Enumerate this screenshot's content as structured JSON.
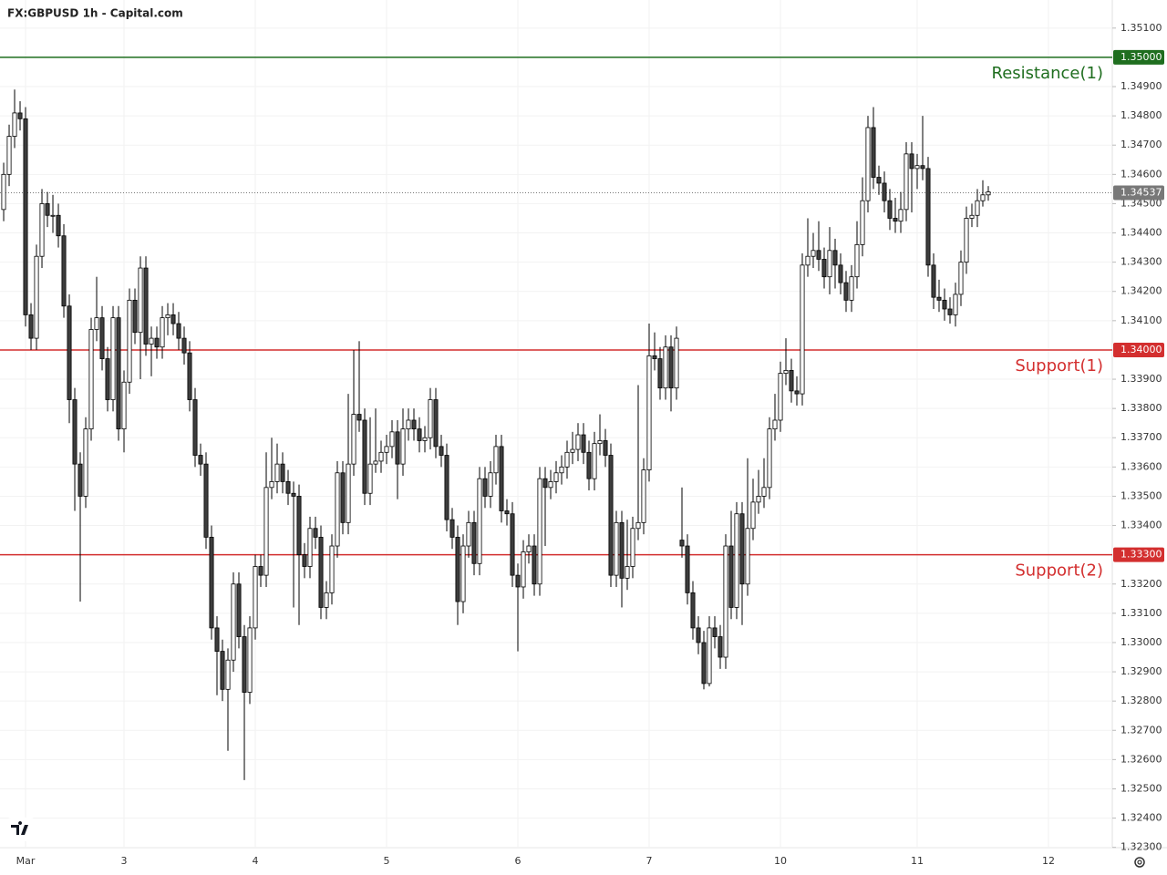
{
  "chart_data": {
    "type": "candlestick",
    "title": "FX:GBPUSD 1h - Capital.com",
    "open": [
      1.3448,
      1.346,
      1.3473,
      1.3481,
      1.3479,
      1.3412,
      1.3404,
      1.3432,
      1.345,
      1.3446,
      1.3446,
      1.3439,
      1.3415,
      1.3383,
      1.3361,
      1.335,
      1.3373,
      1.3407,
      1.3411,
      1.3397,
      1.3383,
      1.3411,
      1.3373,
      1.3389,
      1.3417,
      1.3406,
      1.3428,
      1.3402,
      1.3404,
      1.3401,
      1.3411,
      1.3412,
      1.3409,
      1.3404,
      1.3399,
      1.3383,
      1.3364,
      1.3361,
      1.3336,
      1.3305,
      1.3297,
      1.3284,
      1.3294,
      1.332,
      1.3302,
      1.3283,
      1.3305,
      1.3326,
      1.3323,
      1.3353,
      1.3355,
      1.3361,
      1.3355,
      1.3351,
      1.335,
      1.333,
      1.3326,
      1.3339,
      1.3336,
      1.3312,
      1.3317,
      1.3333,
      1.3358,
      1.3341,
      1.3361,
      1.3378,
      1.3376,
      1.3351,
      1.3361,
      1.3362,
      1.3365,
      1.3367,
      1.3372,
      1.3361,
      1.3373,
      1.3376,
      1.3373,
      1.3369,
      1.337,
      1.3383,
      1.3367,
      1.3364,
      1.3342,
      1.3336,
      1.3314,
      1.3333,
      1.3341,
      1.3327,
      1.3356,
      1.335,
      1.3358,
      1.3367,
      1.3345,
      1.3344,
      1.3323,
      1.3319,
      1.3331,
      1.3333,
      1.332,
      1.3356,
      1.3353,
      1.3355,
      1.3358,
      1.336,
      1.3365,
      1.3366,
      1.3371,
      1.3365,
      1.3356,
      1.3368,
      1.3369,
      1.3364,
      1.3323,
      1.3341,
      1.3322,
      1.3326,
      1.3339,
      1.3341,
      1.3359,
      1.3398,
      1.3397,
      1.3387,
      1.3401,
      1.3387,
      1.3335,
      1.3333,
      1.3317,
      1.3305,
      1.33,
      1.3286,
      1.3305,
      1.3302,
      1.3295,
      1.3333,
      1.3312,
      1.3344,
      1.332,
      1.3339,
      1.3348,
      1.335,
      1.3353,
      1.3373,
      1.3376,
      1.3392,
      1.3393,
      1.3386,
      1.3385,
      1.3429,
      1.3432,
      1.3434,
      1.3431,
      1.3425,
      1.3434,
      1.3429,
      1.3423,
      1.3417,
      1.3425,
      1.3436,
      1.3451,
      1.3476,
      1.3459,
      1.3457,
      1.3451,
      1.3445,
      1.3444,
      1.3448,
      1.3467,
      1.3462,
      1.3463,
      1.3462,
      1.3429,
      1.3418,
      1.3417,
      1.3414,
      1.3412,
      1.3419,
      1.343,
      1.3445,
      1.3446,
      1.3451,
      1.3453
    ],
    "high": [
      1.3464,
      1.3477,
      1.3489,
      1.3485,
      1.3483,
      1.3416,
      1.3436,
      1.3455,
      1.3454,
      1.3453,
      1.345,
      1.3443,
      1.3419,
      1.3387,
      1.3365,
      1.3377,
      1.3411,
      1.3425,
      1.3415,
      1.3401,
      1.3415,
      1.3415,
      1.3393,
      1.3421,
      1.3421,
      1.3432,
      1.3432,
      1.3408,
      1.3408,
      1.3415,
      1.3416,
      1.3416,
      1.3413,
      1.3408,
      1.3403,
      1.3387,
      1.3368,
      1.3365,
      1.334,
      1.3309,
      1.3301,
      1.3298,
      1.3324,
      1.3324,
      1.3306,
      1.3309,
      1.333,
      1.333,
      1.3365,
      1.337,
      1.3368,
      1.3365,
      1.3359,
      1.3355,
      1.3354,
      1.3334,
      1.3343,
      1.3343,
      1.334,
      1.3321,
      1.3337,
      1.3362,
      1.3362,
      1.3385,
      1.34,
      1.3403,
      1.338,
      1.3377,
      1.338,
      1.3369,
      1.3371,
      1.3376,
      1.3376,
      1.338,
      1.338,
      1.338,
      1.3377,
      1.3374,
      1.3387,
      1.3387,
      1.3371,
      1.3368,
      1.3346,
      1.334,
      1.3337,
      1.3345,
      1.3345,
      1.336,
      1.336,
      1.3362,
      1.3371,
      1.3371,
      1.3349,
      1.3348,
      1.3327,
      1.3335,
      1.3337,
      1.3337,
      1.336,
      1.336,
      1.3359,
      1.3362,
      1.3364,
      1.3369,
      1.3372,
      1.3375,
      1.3375,
      1.3369,
      1.3372,
      1.3378,
      1.3373,
      1.3368,
      1.3345,
      1.3345,
      1.3342,
      1.3343,
      1.3388,
      1.3363,
      1.3409,
      1.3406,
      1.3401,
      1.3405,
      1.3405,
      1.3408,
      1.3353,
      1.3337,
      1.3321,
      1.3309,
      1.3304,
      1.3309,
      1.3309,
      1.3306,
      1.3337,
      1.3345,
      1.3348,
      1.3348,
      1.3363,
      1.3356,
      1.3359,
      1.3363,
      1.3377,
      1.3385,
      1.3396,
      1.3404,
      1.3397,
      1.3391,
      1.3433,
      1.3445,
      1.344,
      1.3444,
      1.3435,
      1.3442,
      1.3438,
      1.3433,
      1.3427,
      1.3429,
      1.3444,
      1.3459,
      1.348,
      1.3483,
      1.3463,
      1.3461,
      1.3455,
      1.3452,
      1.3454,
      1.3471,
      1.3471,
      1.3467,
      1.348,
      1.3466,
      1.3433,
      1.3424,
      1.3421,
      1.3418,
      1.3423,
      1.3434,
      1.3449,
      1.345,
      1.3455,
      1.3458,
      1.3456
    ],
    "low": [
      1.3444,
      1.3456,
      1.3469,
      1.3475,
      1.3408,
      1.34,
      1.34,
      1.3428,
      1.3442,
      1.344,
      1.3435,
      1.3411,
      1.3375,
      1.3345,
      1.3314,
      1.3346,
      1.3369,
      1.3403,
      1.3393,
      1.3379,
      1.3379,
      1.3369,
      1.3365,
      1.3385,
      1.3402,
      1.339,
      1.3398,
      1.3391,
      1.3397,
      1.3397,
      1.3405,
      1.3405,
      1.34,
      1.3395,
      1.3379,
      1.336,
      1.3357,
      1.3332,
      1.3301,
      1.3282,
      1.328,
      1.3263,
      1.329,
      1.3298,
      1.3253,
      1.3279,
      1.3301,
      1.3319,
      1.3319,
      1.3349,
      1.3351,
      1.3351,
      1.3347,
      1.3312,
      1.3306,
      1.3322,
      1.3322,
      1.3332,
      1.3308,
      1.3308,
      1.3313,
      1.3329,
      1.3337,
      1.3337,
      1.3357,
      1.3372,
      1.3347,
      1.3347,
      1.3358,
      1.3358,
      1.3361,
      1.3363,
      1.3349,
      1.3357,
      1.3369,
      1.3369,
      1.3365,
      1.3365,
      1.3366,
      1.3363,
      1.336,
      1.3338,
      1.3332,
      1.3306,
      1.331,
      1.3329,
      1.3323,
      1.3323,
      1.3346,
      1.3346,
      1.3354,
      1.3341,
      1.334,
      1.3319,
      1.3297,
      1.3315,
      1.3327,
      1.3316,
      1.3316,
      1.3333,
      1.3349,
      1.3351,
      1.3354,
      1.3356,
      1.3361,
      1.3362,
      1.3361,
      1.3352,
      1.3352,
      1.3364,
      1.336,
      1.3319,
      1.3319,
      1.3312,
      1.3318,
      1.3322,
      1.3335,
      1.3337,
      1.3355,
      1.3393,
      1.3383,
      1.3383,
      1.3379,
      1.3383,
      1.3329,
      1.3313,
      1.3301,
      1.3296,
      1.3284,
      1.3285,
      1.3298,
      1.3291,
      1.3291,
      1.3308,
      1.3308,
      1.3306,
      1.3316,
      1.3335,
      1.3344,
      1.3346,
      1.3349,
      1.3369,
      1.3372,
      1.3388,
      1.3382,
      1.3381,
      1.3381,
      1.3425,
      1.3428,
      1.3427,
      1.3421,
      1.3419,
      1.3421,
      1.3419,
      1.3413,
      1.3413,
      1.3421,
      1.3432,
      1.3447,
      1.3455,
      1.3453,
      1.3447,
      1.3441,
      1.344,
      1.344,
      1.3444,
      1.3447,
      1.3455,
      1.3458,
      1.3425,
      1.3414,
      1.3413,
      1.341,
      1.3409,
      1.3408,
      1.3415,
      1.3426,
      1.3442,
      1.3442,
      1.3449,
      1.3451
    ],
    "close": [
      1.346,
      1.3473,
      1.3481,
      1.3479,
      1.3412,
      1.3404,
      1.3432,
      1.345,
      1.3446,
      1.3446,
      1.3439,
      1.3415,
      1.3383,
      1.3361,
      1.335,
      1.3373,
      1.3407,
      1.3411,
      1.3397,
      1.3383,
      1.3411,
      1.3373,
      1.3389,
      1.3417,
      1.3406,
      1.3428,
      1.3402,
      1.3404,
      1.3401,
      1.3411,
      1.3412,
      1.3409,
      1.3404,
      1.3399,
      1.3383,
      1.3364,
      1.3361,
      1.3336,
      1.3305,
      1.3297,
      1.3284,
      1.3294,
      1.332,
      1.3302,
      1.3283,
      1.3305,
      1.3326,
      1.3323,
      1.3353,
      1.3355,
      1.3361,
      1.3355,
      1.3351,
      1.335,
      1.333,
      1.3326,
      1.3339,
      1.3336,
      1.3312,
      1.3317,
      1.3333,
      1.3358,
      1.3341,
      1.3361,
      1.3378,
      1.3376,
      1.3351,
      1.3361,
      1.3362,
      1.3365,
      1.3367,
      1.3372,
      1.3361,
      1.3373,
      1.3376,
      1.3373,
      1.3369,
      1.337,
      1.3383,
      1.3367,
      1.3364,
      1.3342,
      1.3336,
      1.3314,
      1.3333,
      1.3341,
      1.3327,
      1.3356,
      1.335,
      1.3358,
      1.3367,
      1.3345,
      1.3344,
      1.3323,
      1.3319,
      1.3331,
      1.3333,
      1.332,
      1.3356,
      1.3353,
      1.3355,
      1.3358,
      1.336,
      1.3365,
      1.3366,
      1.3371,
      1.3365,
      1.3356,
      1.3368,
      1.3369,
      1.3364,
      1.3323,
      1.3341,
      1.3322,
      1.3326,
      1.3339,
      1.3341,
      1.3359,
      1.3398,
      1.3397,
      1.3387,
      1.3401,
      1.3387,
      1.3404,
      1.3333,
      1.3317,
      1.3305,
      1.33,
      1.3286,
      1.3305,
      1.3302,
      1.3295,
      1.3333,
      1.3312,
      1.3344,
      1.332,
      1.3339,
      1.3348,
      1.335,
      1.3353,
      1.3373,
      1.3376,
      1.3392,
      1.3393,
      1.3386,
      1.3385,
      1.3429,
      1.3432,
      1.3434,
      1.3431,
      1.3425,
      1.3434,
      1.3429,
      1.3423,
      1.3417,
      1.3425,
      1.3436,
      1.3451,
      1.3476,
      1.3459,
      1.3457,
      1.3451,
      1.3445,
      1.3444,
      1.3448,
      1.3467,
      1.3462,
      1.3463,
      1.3462,
      1.3429,
      1.3418,
      1.3417,
      1.3414,
      1.3412,
      1.3419,
      1.343,
      1.3445,
      1.3446,
      1.3451,
      1.3453,
      1.3454
    ],
    "up_color": "#ffffff",
    "down_color": "#3d3d3d",
    "border_color": "#000000",
    "xlim": [
      -0.67,
      202.67
    ],
    "xticks": [
      {
        "value": 4,
        "label": "Mar"
      },
      {
        "value": 22,
        "label": "3"
      },
      {
        "value": 46,
        "label": "4"
      },
      {
        "value": 70,
        "label": "5"
      },
      {
        "value": 94,
        "label": "6"
      },
      {
        "value": 118,
        "label": "7"
      },
      {
        "value": 142,
        "label": "10"
      },
      {
        "value": 167,
        "label": "11"
      },
      {
        "value": 191,
        "label": "12"
      }
    ],
    "ylim": [
      1.32299,
      1.35196
    ],
    "yticks": [
      {
        "value": 1.323,
        "label": "1.32300"
      },
      {
        "value": 1.324,
        "label": "1.32400"
      },
      {
        "value": 1.325,
        "label": "1.32500"
      },
      {
        "value": 1.326,
        "label": "1.32600"
      },
      {
        "value": 1.327,
        "label": "1.32700"
      },
      {
        "value": 1.328,
        "label": "1.32800"
      },
      {
        "value": 1.329,
        "label": "1.32900"
      },
      {
        "value": 1.33,
        "label": "1.33000"
      },
      {
        "value": 1.331,
        "label": "1.33100"
      },
      {
        "value": 1.332,
        "label": "1.33200"
      },
      {
        "value": 1.334,
        "label": "1.33400"
      },
      {
        "value": 1.335,
        "label": "1.33500"
      },
      {
        "value": 1.336,
        "label": "1.33600"
      },
      {
        "value": 1.337,
        "label": "1.33700"
      },
      {
        "value": 1.338,
        "label": "1.33800"
      },
      {
        "value": 1.339,
        "label": "1.33900"
      },
      {
        "value": 1.341,
        "label": "1.34100"
      },
      {
        "value": 1.342,
        "label": "1.34200"
      },
      {
        "value": 1.343,
        "label": "1.34300"
      },
      {
        "value": 1.344,
        "label": "1.34400"
      },
      {
        "value": 1.345,
        "label": "1.34500"
      },
      {
        "value": 1.346,
        "label": "1.34600"
      },
      {
        "value": 1.347,
        "label": "1.34700"
      },
      {
        "value": 1.348,
        "label": "1.34800"
      },
      {
        "value": 1.349,
        "label": "1.34900"
      },
      {
        "value": 1.351,
        "label": "1.35100"
      }
    ],
    "grid": true,
    "levels": [
      {
        "name": "Resistance(1)",
        "value": 1.35,
        "label": "1.35000",
        "color": "#1f6e1f"
      },
      {
        "name": "Support(1)",
        "value": 1.34,
        "label": "1.34000",
        "color": "#d32f2f"
      },
      {
        "name": "Support(2)",
        "value": 1.333,
        "label": "1.33300",
        "color": "#d32f2f"
      }
    ],
    "last_price": 1.34537,
    "last_price_color": "#787878"
  }
}
